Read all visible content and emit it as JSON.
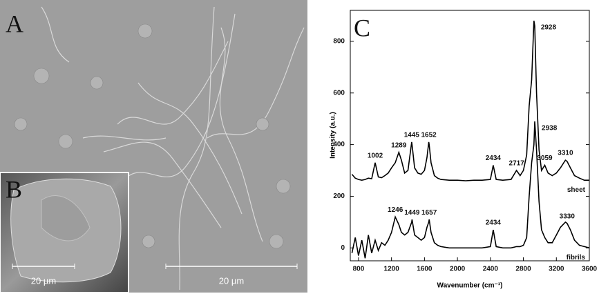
{
  "panels": {
    "a": {
      "letter": "A",
      "scale_bar": "20 µm"
    },
    "b": {
      "letter": "B",
      "scale_bar": "20 µm"
    }
  },
  "chart_data": {
    "type": "line",
    "panel": "C",
    "ylabel": "Intensity (a.u.)",
    "xlabel": "Wavenumber (cm⁻¹)",
    "xlim": [
      700,
      3600
    ],
    "xticks": [
      800,
      1200,
      1600,
      2000,
      2400,
      2800,
      3200,
      3600
    ],
    "ylim": [
      -50,
      920
    ],
    "yticks": [
      0,
      200,
      400,
      600,
      800
    ],
    "x": [
      720,
      760,
      800,
      840,
      880,
      920,
      960,
      1002,
      1040,
      1080,
      1120,
      1160,
      1200,
      1246,
      1289,
      1320,
      1360,
      1400,
      1445,
      1449,
      1480,
      1520,
      1560,
      1600,
      1630,
      1652,
      1657,
      1680,
      1720,
      1760,
      1800,
      1900,
      2000,
      2100,
      2200,
      2300,
      2400,
      2434,
      2470,
      2550,
      2650,
      2717,
      2760,
      2800,
      2840,
      2870,
      2900,
      2928,
      2938,
      2960,
      2990,
      3020,
      3059,
      3100,
      3150,
      3200,
      3250,
      3310,
      3330,
      3370,
      3420,
      3480,
      3540,
      3600
    ],
    "series": [
      {
        "name": "sheet",
        "color": "#000000",
        "peaks": [
          1002,
          1289,
          1445,
          1652,
          2434,
          2717,
          2928,
          3059,
          3310
        ],
        "values": [
          285,
          270,
          265,
          262,
          265,
          270,
          268,
          330,
          275,
          272,
          280,
          290,
          310,
          330,
          370,
          340,
          290,
          300,
          410,
          400,
          310,
          290,
          285,
          300,
          350,
          410,
          400,
          330,
          280,
          270,
          265,
          262,
          262,
          260,
          262,
          262,
          265,
          320,
          265,
          262,
          265,
          300,
          280,
          300,
          360,
          550,
          650,
          880,
          860,
          600,
          380,
          300,
          320,
          290,
          280,
          290,
          310,
          340,
          335,
          310,
          280,
          270,
          262,
          262
        ]
      },
      {
        "name": "fibrils",
        "color": "#000000",
        "peaks": [
          1246,
          1449,
          1657,
          2434,
          2938,
          3330
        ],
        "values": [
          -20,
          40,
          -30,
          30,
          -40,
          50,
          -20,
          30,
          -10,
          20,
          10,
          30,
          60,
          120,
          90,
          60,
          50,
          60,
          100,
          110,
          50,
          40,
          30,
          40,
          80,
          100,
          110,
          60,
          20,
          10,
          5,
          0,
          0,
          0,
          0,
          0,
          5,
          70,
          5,
          0,
          0,
          5,
          5,
          10,
          40,
          200,
          330,
          400,
          490,
          380,
          180,
          70,
          40,
          20,
          20,
          50,
          80,
          100,
          95,
          70,
          30,
          10,
          5,
          0
        ]
      }
    ]
  }
}
